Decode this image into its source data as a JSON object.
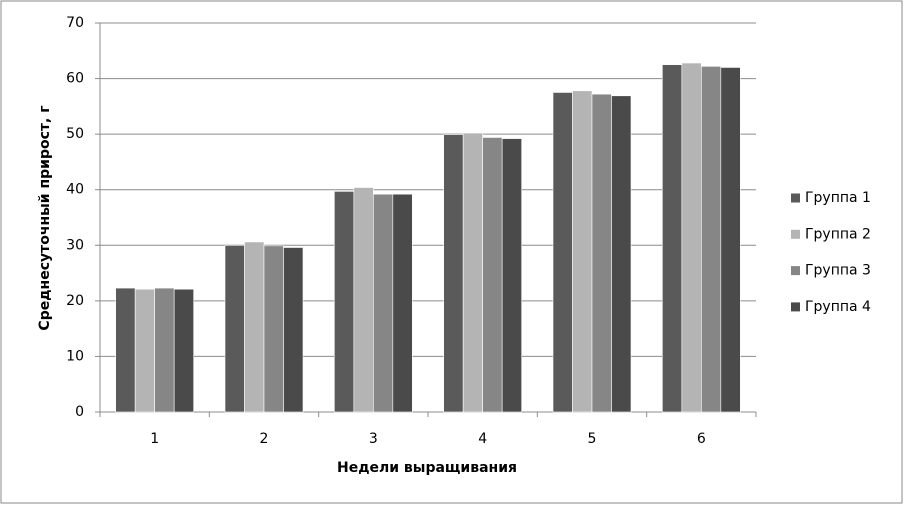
{
  "chart_data": {
    "type": "bar",
    "x_label": "Недели выращивания",
    "y_label": "Среднесуточный прирост, г",
    "categories": [
      "1",
      "2",
      "3",
      "4",
      "5",
      "6"
    ],
    "series": [
      {
        "name": "Группа 1",
        "color": "#5a5a5a",
        "values": [
          22.3,
          30.0,
          39.7,
          49.9,
          57.5,
          62.5
        ]
      },
      {
        "name": "Группа 2",
        "color": "#b4b4b4",
        "values": [
          22.1,
          30.6,
          40.4,
          50.2,
          57.8,
          62.8
        ]
      },
      {
        "name": "Группа 3",
        "color": "#868686",
        "values": [
          22.3,
          29.9,
          39.2,
          49.4,
          57.2,
          62.2
        ]
      },
      {
        "name": "Группа 4",
        "color": "#4a4a4a",
        "values": [
          22.1,
          29.6,
          39.2,
          49.2,
          56.9,
          62.0
        ]
      }
    ],
    "ylim": [
      0,
      70
    ],
    "yticks": [
      0,
      10,
      20,
      30,
      40,
      50,
      60,
      70
    ],
    "grid": true,
    "legend": "right"
  }
}
